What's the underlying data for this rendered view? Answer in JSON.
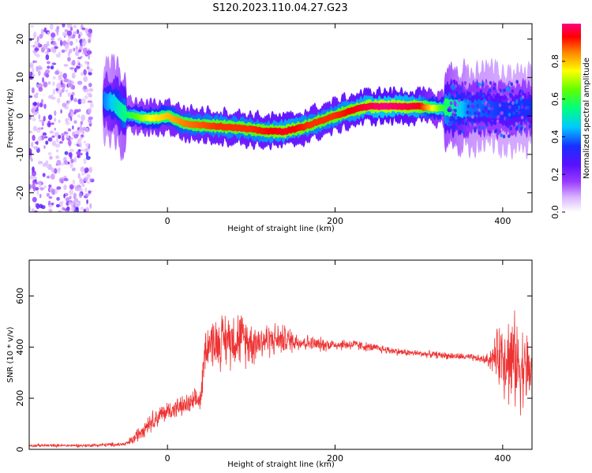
{
  "title": "S120.2023.110.04.27.G23",
  "chart_data": [
    {
      "type": "heatmap",
      "xlabel": "Height of straight line (km)",
      "ylabel": "Frequency (Hz)",
      "xlim": [
        -165,
        435
      ],
      "ylim": [
        -25,
        24
      ],
      "x_ticks": [
        "0",
        "200",
        "400"
      ],
      "y_ticks": [
        "20",
        "10",
        "0",
        "-10",
        "-20"
      ],
      "colorbar": {
        "label": "Normalized spectral amplitude",
        "ticks": [
          "0.0",
          "0.2",
          "0.4",
          "0.6",
          "0.8"
        ],
        "range": [
          0,
          1
        ]
      },
      "ridge_frequency_hz": {
        "x": [
          -75,
          -65,
          -50,
          -30,
          -10,
          0,
          20,
          50,
          80,
          100,
          120,
          140,
          160,
          180,
          200,
          220,
          240,
          260,
          280,
          300,
          320,
          340,
          360,
          380,
          400,
          420,
          435
        ],
        "y": [
          4,
          3.5,
          0.5,
          -0.5,
          -0.5,
          0,
          -2,
          -2.5,
          -3,
          -3.5,
          -4,
          -4,
          -3,
          -1.5,
          0,
          1.5,
          2.5,
          2.5,
          2.5,
          2.5,
          2,
          2,
          2,
          2,
          1.5,
          2,
          2
        ]
      },
      "peak_amplitude": {
        "x": [
          -75,
          -50,
          -20,
          0,
          20,
          60,
          100,
          140,
          170,
          200,
          230,
          260,
          300,
          330,
          360,
          400,
          435
        ],
        "y": [
          0.4,
          0.55,
          0.75,
          0.8,
          0.85,
          0.9,
          0.9,
          0.95,
          0.9,
          0.9,
          0.95,
          1.0,
          0.95,
          0.6,
          0.4,
          0.35,
          0.35
        ]
      },
      "noise_region_x": [
        -165,
        -90
      ]
    },
    {
      "type": "line",
      "xlabel": "Height of straight line (km)",
      "ylabel": "SNR (10 * v/v)",
      "xlim": [
        -165,
        435
      ],
      "ylim": [
        0,
        740
      ],
      "x_ticks": [
        "0",
        "200",
        "400"
      ],
      "y_ticks": [
        "0",
        "200",
        "400",
        "600"
      ],
      "color": "#ee3333",
      "series": [
        {
          "x": [
            -165,
            -100,
            -50,
            -40,
            -30,
            -20,
            -10,
            0,
            10,
            20,
            30,
            40,
            45,
            50,
            60,
            80,
            100,
            120,
            140,
            160,
            180,
            200,
            220,
            240,
            260,
            280,
            300,
            320,
            340,
            360,
            380,
            390,
            400,
            410,
            420,
            435
          ],
          "y": [
            15,
            15,
            20,
            40,
            80,
            110,
            130,
            150,
            160,
            170,
            180,
            200,
            400,
            420,
            420,
            440,
            420,
            430,
            430,
            420,
            410,
            410,
            410,
            400,
            390,
            380,
            375,
            370,
            365,
            360,
            350,
            360,
            380,
            350,
            330,
            300
          ],
          "noise": [
            5,
            5,
            8,
            20,
            30,
            35,
            35,
            35,
            35,
            35,
            40,
            45,
            70,
            80,
            90,
            100,
            80,
            60,
            50,
            30,
            25,
            20,
            20,
            15,
            15,
            12,
            12,
            12,
            12,
            12,
            15,
            60,
            140,
            170,
            150,
            120
          ]
        }
      ]
    }
  ]
}
